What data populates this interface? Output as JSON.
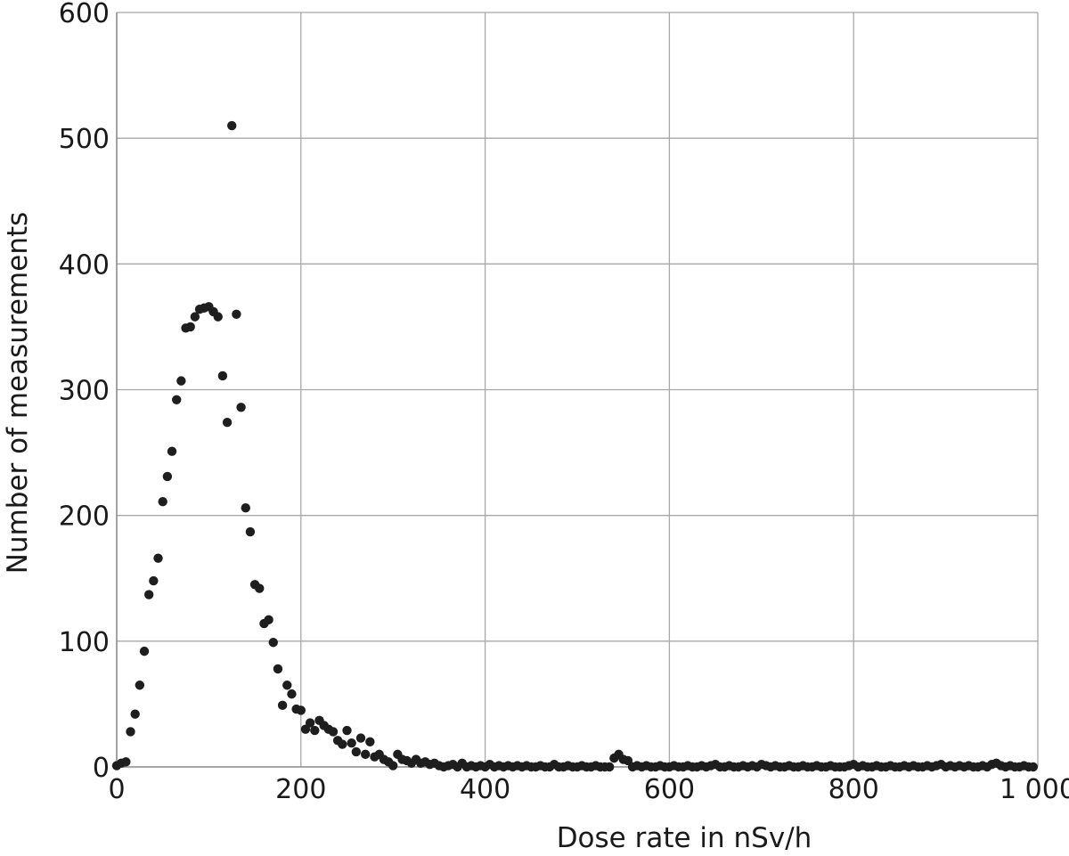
{
  "chart_data": {
    "type": "scatter",
    "title": "",
    "xlabel": "Dose rate in nSv/h",
    "ylabel": "Number of measurements",
    "xlim": [
      0,
      1000
    ],
    "ylim": [
      0,
      600
    ],
    "x_ticks": [
      0,
      200,
      400,
      600,
      800,
      1000
    ],
    "x_tick_labels": [
      "0",
      "200",
      "400",
      "600",
      "800",
      "1 000"
    ],
    "y_ticks": [
      0,
      100,
      200,
      300,
      400,
      500,
      600
    ],
    "y_tick_labels": [
      "0",
      "100",
      "200",
      "300",
      "400",
      "500",
      "600"
    ],
    "grid": true,
    "marker_color": "#1e1e1e",
    "series": [
      {
        "points": [
          [
            0,
            1
          ],
          [
            5,
            3
          ],
          [
            10,
            4
          ],
          [
            15,
            28
          ],
          [
            20,
            42
          ],
          [
            25,
            65
          ],
          [
            30,
            92
          ],
          [
            35,
            137
          ],
          [
            40,
            148
          ],
          [
            45,
            166
          ],
          [
            50,
            211
          ],
          [
            55,
            231
          ],
          [
            60,
            251
          ],
          [
            65,
            292
          ],
          [
            70,
            307
          ],
          [
            75,
            349
          ],
          [
            80,
            350
          ],
          [
            85,
            358
          ],
          [
            90,
            364
          ],
          [
            95,
            365
          ],
          [
            100,
            366
          ],
          [
            105,
            362
          ],
          [
            110,
            358
          ],
          [
            115,
            311
          ],
          [
            120,
            274
          ],
          [
            125,
            510
          ],
          [
            130,
            360
          ],
          [
            135,
            286
          ],
          [
            140,
            206
          ],
          [
            145,
            187
          ],
          [
            150,
            145
          ],
          [
            155,
            142
          ],
          [
            160,
            114
          ],
          [
            165,
            117
          ],
          [
            170,
            99
          ],
          [
            175,
            78
          ],
          [
            180,
            49
          ],
          [
            185,
            65
          ],
          [
            190,
            58
          ],
          [
            195,
            46
          ],
          [
            200,
            45
          ],
          [
            205,
            30
          ],
          [
            210,
            35
          ],
          [
            215,
            29
          ],
          [
            220,
            37
          ],
          [
            225,
            33
          ],
          [
            230,
            30
          ],
          [
            235,
            28
          ],
          [
            240,
            21
          ],
          [
            245,
            18
          ],
          [
            250,
            29
          ],
          [
            255,
            19
          ],
          [
            260,
            12
          ],
          [
            265,
            23
          ],
          [
            270,
            10
          ],
          [
            275,
            20
          ],
          [
            280,
            8
          ],
          [
            285,
            10
          ],
          [
            290,
            6
          ],
          [
            295,
            4
          ],
          [
            300,
            1
          ],
          [
            305,
            10
          ],
          [
            310,
            6
          ],
          [
            315,
            5
          ],
          [
            320,
            3
          ],
          [
            325,
            6
          ],
          [
            330,
            3
          ],
          [
            335,
            4
          ],
          [
            340,
            2
          ],
          [
            345,
            3
          ],
          [
            350,
            1
          ],
          [
            355,
            0
          ],
          [
            360,
            1
          ],
          [
            365,
            2
          ],
          [
            370,
            0
          ],
          [
            375,
            3
          ],
          [
            380,
            0
          ],
          [
            385,
            1
          ],
          [
            390,
            0
          ],
          [
            395,
            1
          ],
          [
            400,
            0
          ],
          [
            405,
            2
          ],
          [
            410,
            0
          ],
          [
            415,
            1
          ],
          [
            420,
            0
          ],
          [
            425,
            1
          ],
          [
            430,
            0
          ],
          [
            435,
            1
          ],
          [
            440,
            0
          ],
          [
            445,
            1
          ],
          [
            450,
            0
          ],
          [
            455,
            0
          ],
          [
            460,
            1
          ],
          [
            465,
            0
          ],
          [
            470,
            0
          ],
          [
            475,
            2
          ],
          [
            480,
            0
          ],
          [
            485,
            0
          ],
          [
            490,
            1
          ],
          [
            495,
            0
          ],
          [
            500,
            0
          ],
          [
            505,
            1
          ],
          [
            510,
            0
          ],
          [
            515,
            0
          ],
          [
            520,
            1
          ],
          [
            525,
            0
          ],
          [
            530,
            0
          ],
          [
            535,
            0
          ],
          [
            540,
            7
          ],
          [
            545,
            10
          ],
          [
            550,
            6
          ],
          [
            555,
            5
          ],
          [
            560,
            0
          ],
          [
            565,
            1
          ],
          [
            570,
            0
          ],
          [
            575,
            1
          ],
          [
            580,
            0
          ],
          [
            585,
            0
          ],
          [
            590,
            1
          ],
          [
            595,
            0
          ],
          [
            600,
            0
          ],
          [
            605,
            1
          ],
          [
            610,
            0
          ],
          [
            615,
            0
          ],
          [
            620,
            1
          ],
          [
            625,
            0
          ],
          [
            630,
            0
          ],
          [
            635,
            1
          ],
          [
            640,
            0
          ],
          [
            645,
            1
          ],
          [
            650,
            2
          ],
          [
            655,
            0
          ],
          [
            660,
            0
          ],
          [
            665,
            1
          ],
          [
            670,
            0
          ],
          [
            675,
            0
          ],
          [
            680,
            1
          ],
          [
            685,
            0
          ],
          [
            690,
            1
          ],
          [
            695,
            0
          ],
          [
            700,
            2
          ],
          [
            705,
            1
          ],
          [
            710,
            0
          ],
          [
            715,
            1
          ],
          [
            720,
            0
          ],
          [
            725,
            0
          ],
          [
            730,
            1
          ],
          [
            735,
            0
          ],
          [
            740,
            0
          ],
          [
            745,
            1
          ],
          [
            750,
            0
          ],
          [
            755,
            0
          ],
          [
            760,
            1
          ],
          [
            765,
            0
          ],
          [
            770,
            0
          ],
          [
            775,
            1
          ],
          [
            780,
            0
          ],
          [
            785,
            0
          ],
          [
            790,
            0
          ],
          [
            795,
            1
          ],
          [
            800,
            2
          ],
          [
            805,
            0
          ],
          [
            810,
            1
          ],
          [
            815,
            0
          ],
          [
            820,
            0
          ],
          [
            825,
            1
          ],
          [
            830,
            0
          ],
          [
            835,
            0
          ],
          [
            840,
            1
          ],
          [
            845,
            0
          ],
          [
            850,
            0
          ],
          [
            855,
            1
          ],
          [
            860,
            0
          ],
          [
            865,
            1
          ],
          [
            870,
            0
          ],
          [
            875,
            0
          ],
          [
            880,
            1
          ],
          [
            885,
            0
          ],
          [
            890,
            1
          ],
          [
            895,
            2
          ],
          [
            900,
            0
          ],
          [
            905,
            1
          ],
          [
            910,
            0
          ],
          [
            915,
            1
          ],
          [
            920,
            0
          ],
          [
            925,
            1
          ],
          [
            930,
            0
          ],
          [
            935,
            0
          ],
          [
            940,
            1
          ],
          [
            945,
            0
          ],
          [
            950,
            2
          ],
          [
            955,
            3
          ],
          [
            960,
            1
          ],
          [
            965,
            0
          ],
          [
            970,
            1
          ],
          [
            975,
            0
          ],
          [
            980,
            0
          ],
          [
            985,
            1
          ],
          [
            990,
            0
          ],
          [
            995,
            0
          ]
        ]
      }
    ]
  }
}
